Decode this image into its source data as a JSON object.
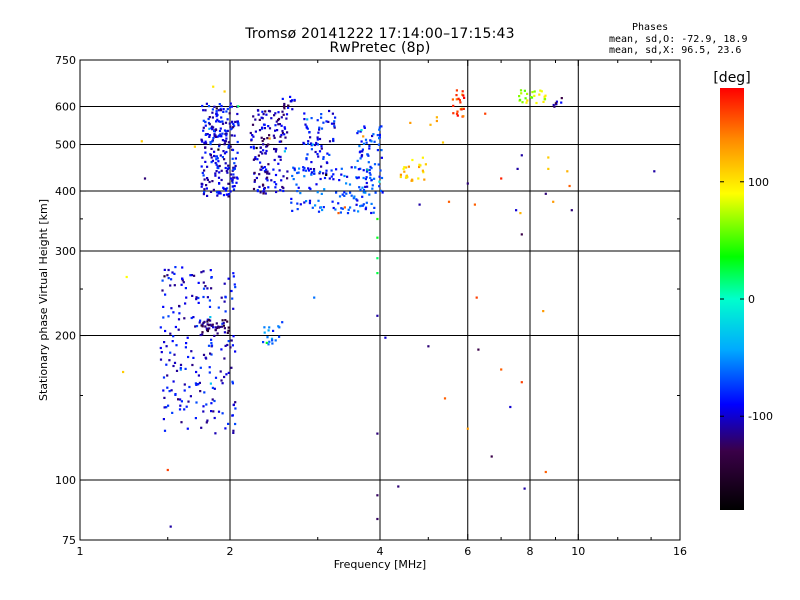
{
  "header": {
    "title_line1": "Tromsø 20141222 17:14:00–17:15:43",
    "title_line2": "RwPretec (8p)",
    "stats_heading": "Phases",
    "stats_o": "mean, sd,O: -72.9, 18.9",
    "stats_x": "mean, sd,X:  96.5, 23.6"
  },
  "colorbar": {
    "unit_label": "[deg]",
    "range": [
      -180,
      180
    ],
    "tick_values": [
      100,
      0,
      -100
    ],
    "tick_labels": [
      "100",
      "0",
      "-100"
    ]
  },
  "chart_data": {
    "type": "scatter",
    "title": "Tromsø 20141222 17:14:00–17:15:43",
    "subtitle": "RwPretec (8p)",
    "xlabel": "Frequency [MHz]",
    "ylabel": "Stationary phase Virtual Height [km]",
    "x_scale": "log",
    "y_scale": "log",
    "xlim": [
      1,
      16
    ],
    "ylim": [
      75,
      750
    ],
    "x_ticks": [
      1,
      2,
      4,
      6,
      8,
      10,
      16
    ],
    "x_tick_labels": [
      "1",
      "2",
      "4",
      "6",
      "8",
      "10",
      "16"
    ],
    "y_ticks": [
      75,
      100,
      200,
      300,
      400,
      500,
      600,
      750
    ],
    "y_tick_labels": [
      "75",
      "100",
      "200",
      "300",
      "400",
      "500",
      "600",
      "750"
    ],
    "grid": true,
    "color_scale": "phase in degrees, -180 to 180, black-purple-blue-cyan-green-yellow-red",
    "clusters": [
      {
        "x_range": [
          1.75,
          2.08
        ],
        "y_range": [
          390,
          610
        ],
        "phase": -95,
        "count": 240
      },
      {
        "x_range": [
          2.2,
          2.62
        ],
        "y_range": [
          395,
          590
        ],
        "phase": -105,
        "count": 150
      },
      {
        "x_range": [
          2.55,
          2.7
        ],
        "y_range": [
          590,
          630
        ],
        "phase": -110,
        "count": 15
      },
      {
        "x_range": [
          2.8,
          3.25
        ],
        "y_range": [
          430,
          590
        ],
        "phase": -90,
        "count": 80
      },
      {
        "x_range": [
          2.65,
          3.9
        ],
        "y_range": [
          360,
          450
        ],
        "phase": -75,
        "count": 110
      },
      {
        "x_range": [
          3.6,
          4.05
        ],
        "y_range": [
          390,
          550
        ],
        "phase": -80,
        "count": 70
      },
      {
        "x_range": [
          1.45,
          2.05
        ],
        "y_range": [
          125,
          280
        ],
        "phase": -95,
        "count": 220
      },
      {
        "x_range": [
          1.75,
          2.0
        ],
        "y_range": [
          202,
          216
        ],
        "phase": -125,
        "count": 40
      },
      {
        "x_range": [
          2.3,
          2.55
        ],
        "y_range": [
          190,
          215
        ],
        "phase": -65,
        "count": 18
      },
      {
        "x_range": [
          4.4,
          5.0
        ],
        "y_range": [
          420,
          470
        ],
        "phase": 110,
        "count": 25
      },
      {
        "x_range": [
          5.6,
          5.9
        ],
        "y_range": [
          570,
          650
        ],
        "phase": 160,
        "count": 22
      },
      {
        "x_range": [
          7.6,
          8.6
        ],
        "y_range": [
          610,
          650
        ],
        "phase": 80,
        "count": 25
      },
      {
        "x_range": [
          8.9,
          9.4
        ],
        "y_range": [
          595,
          625
        ],
        "phase": -110,
        "count": 8
      }
    ],
    "points": [
      {
        "x": 3.95,
        "y": 290,
        "phase": 20
      },
      {
        "x": 3.95,
        "y": 270,
        "phase": 25
      },
      {
        "x": 3.95,
        "y": 320,
        "phase": 30
      },
      {
        "x": 3.95,
        "y": 350,
        "phase": 40
      },
      {
        "x": 3.95,
        "y": 220,
        "phase": -110
      },
      {
        "x": 3.95,
        "y": 125,
        "phase": -120
      },
      {
        "x": 3.95,
        "y": 93,
        "phase": -125
      },
      {
        "x": 3.95,
        "y": 83,
        "phase": -125
      },
      {
        "x": 4.1,
        "y": 198,
        "phase": -100
      },
      {
        "x": 4.35,
        "y": 97,
        "phase": -120
      },
      {
        "x": 4.8,
        "y": 375,
        "phase": -110
      },
      {
        "x": 5.0,
        "y": 190,
        "phase": -120
      },
      {
        "x": 5.35,
        "y": 505,
        "phase": 110
      },
      {
        "x": 5.2,
        "y": 570,
        "phase": 120
      },
      {
        "x": 4.6,
        "y": 555,
        "phase": 130
      },
      {
        "x": 5.4,
        "y": 148,
        "phase": 150
      },
      {
        "x": 5.5,
        "y": 380,
        "phase": 150
      },
      {
        "x": 6.0,
        "y": 415,
        "phase": -120
      },
      {
        "x": 6.0,
        "y": 128,
        "phase": 130
      },
      {
        "x": 6.2,
        "y": 375,
        "phase": 150
      },
      {
        "x": 6.25,
        "y": 240,
        "phase": 160
      },
      {
        "x": 6.3,
        "y": 187,
        "phase": -130
      },
      {
        "x": 6.5,
        "y": 580,
        "phase": 160
      },
      {
        "x": 6.7,
        "y": 112,
        "phase": -130
      },
      {
        "x": 7.0,
        "y": 425,
        "phase": 170
      },
      {
        "x": 7.0,
        "y": 170,
        "phase": 150
      },
      {
        "x": 7.3,
        "y": 142,
        "phase": -100
      },
      {
        "x": 7.5,
        "y": 365,
        "phase": -100
      },
      {
        "x": 7.55,
        "y": 445,
        "phase": -110
      },
      {
        "x": 7.65,
        "y": 360,
        "phase": 120
      },
      {
        "x": 7.7,
        "y": 325,
        "phase": -130
      },
      {
        "x": 7.7,
        "y": 160,
        "phase": 160
      },
      {
        "x": 7.8,
        "y": 96,
        "phase": -110
      },
      {
        "x": 7.7,
        "y": 475,
        "phase": -110
      },
      {
        "x": 8.5,
        "y": 225,
        "phase": 130
      },
      {
        "x": 8.6,
        "y": 395,
        "phase": -120
      },
      {
        "x": 8.6,
        "y": 104,
        "phase": 150
      },
      {
        "x": 8.7,
        "y": 445,
        "phase": 110
      },
      {
        "x": 8.7,
        "y": 470,
        "phase": 110
      },
      {
        "x": 8.9,
        "y": 380,
        "phase": 130
      },
      {
        "x": 9.5,
        "y": 440,
        "phase": 120
      },
      {
        "x": 9.7,
        "y": 365,
        "phase": -120
      },
      {
        "x": 9.6,
        "y": 410,
        "phase": 150
      },
      {
        "x": 14.2,
        "y": 440,
        "phase": -110
      },
      {
        "x": 1.5,
        "y": 105,
        "phase": 160
      },
      {
        "x": 1.52,
        "y": 80,
        "phase": -110
      },
      {
        "x": 1.22,
        "y": 168,
        "phase": 110
      },
      {
        "x": 1.24,
        "y": 265,
        "phase": 90
      },
      {
        "x": 1.33,
        "y": 508,
        "phase": 110
      },
      {
        "x": 1.35,
        "y": 425,
        "phase": -120
      },
      {
        "x": 1.7,
        "y": 495,
        "phase": 110
      },
      {
        "x": 2.4,
        "y": 515,
        "phase": 130
      },
      {
        "x": 2.95,
        "y": 240,
        "phase": -60
      },
      {
        "x": 3.7,
        "y": 520,
        "phase": 130
      },
      {
        "x": 3.4,
        "y": 370,
        "phase": 150
      },
      {
        "x": 3.3,
        "y": 360,
        "phase": 150
      },
      {
        "x": 1.95,
        "y": 645,
        "phase": 110
      },
      {
        "x": 1.85,
        "y": 660,
        "phase": 100
      },
      {
        "x": 5.2,
        "y": 560,
        "phase": 130
      },
      {
        "x": 5.05,
        "y": 550,
        "phase": 120
      }
    ]
  }
}
